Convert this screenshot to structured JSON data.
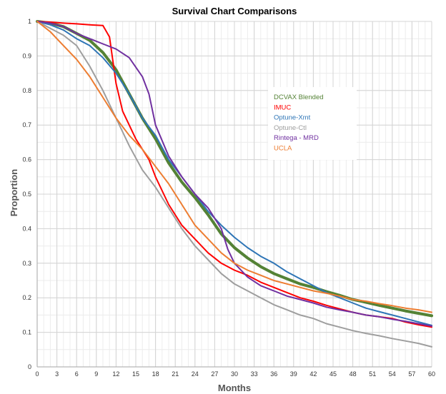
{
  "chart_data": {
    "type": "line",
    "title": "Survival Chart Comparisons",
    "xlabel": "Months",
    "ylabel": "Proportion",
    "xlim": [
      0,
      60
    ],
    "ylim": [
      0,
      1
    ],
    "x_ticks": [
      0,
      3,
      6,
      9,
      12,
      15,
      18,
      21,
      24,
      27,
      30,
      33,
      36,
      39,
      42,
      45,
      48,
      51,
      54,
      57,
      60
    ],
    "y_ticks": [
      0,
      0.1,
      0.2,
      0.3,
      0.4,
      0.5,
      0.6,
      0.7,
      0.8,
      0.9,
      1
    ],
    "y_tick_labels": [
      "0",
      "0.1",
      "0.2",
      "0.3",
      "0.4",
      "0.5",
      "0.6",
      "0.7",
      "0.8",
      "0.9",
      "1"
    ],
    "grid": true,
    "minor_grid_x": 1,
    "minor_grid_y": 0.05,
    "legend_position": "center-right",
    "series": [
      {
        "name": "DCVAX Blended",
        "color": "#548235",
        "width": 4,
        "points": [
          [
            0,
            1.0
          ],
          [
            2,
            0.995
          ],
          [
            4,
            0.985
          ],
          [
            6,
            0.965
          ],
          [
            8,
            0.945
          ],
          [
            10,
            0.91
          ],
          [
            12,
            0.86
          ],
          [
            14,
            0.79
          ],
          [
            16,
            0.72
          ],
          [
            18,
            0.66
          ],
          [
            20,
            0.59
          ],
          [
            22,
            0.535
          ],
          [
            24,
            0.49
          ],
          [
            26,
            0.44
          ],
          [
            28,
            0.385
          ],
          [
            30,
            0.345
          ],
          [
            32,
            0.315
          ],
          [
            34,
            0.29
          ],
          [
            36,
            0.27
          ],
          [
            38,
            0.255
          ],
          [
            40,
            0.24
          ],
          [
            42,
            0.23
          ],
          [
            44,
            0.218
          ],
          [
            46,
            0.207
          ],
          [
            48,
            0.195
          ],
          [
            50,
            0.187
          ],
          [
            52,
            0.178
          ],
          [
            54,
            0.17
          ],
          [
            56,
            0.162
          ],
          [
            58,
            0.155
          ],
          [
            60,
            0.148
          ]
        ]
      },
      {
        "name": "IMUC",
        "color": "#ff0000",
        "width": 2,
        "points": [
          [
            0,
            1.0
          ],
          [
            2,
            0.998
          ],
          [
            4,
            0.995
          ],
          [
            6,
            0.993
          ],
          [
            8,
            0.99
          ],
          [
            10,
            0.988
          ],
          [
            11,
            0.955
          ],
          [
            12,
            0.82
          ],
          [
            13,
            0.74
          ],
          [
            15,
            0.66
          ],
          [
            17,
            0.6
          ],
          [
            18,
            0.55
          ],
          [
            20,
            0.47
          ],
          [
            22,
            0.41
          ],
          [
            24,
            0.37
          ],
          [
            26,
            0.33
          ],
          [
            28,
            0.3
          ],
          [
            30,
            0.28
          ],
          [
            32,
            0.265
          ],
          [
            34,
            0.245
          ],
          [
            36,
            0.23
          ],
          [
            38,
            0.215
          ],
          [
            40,
            0.2
          ],
          [
            42,
            0.19
          ],
          [
            44,
            0.178
          ],
          [
            46,
            0.168
          ],
          [
            48,
            0.158
          ],
          [
            50,
            0.15
          ],
          [
            52,
            0.145
          ],
          [
            54,
            0.14
          ],
          [
            56,
            0.13
          ],
          [
            58,
            0.122
          ],
          [
            60,
            0.115
          ]
        ]
      },
      {
        "name": "Optune-Xmt",
        "color": "#2e75b6",
        "width": 2,
        "points": [
          [
            0,
            1.0
          ],
          [
            2,
            0.99
          ],
          [
            4,
            0.975
          ],
          [
            6,
            0.95
          ],
          [
            8,
            0.93
          ],
          [
            10,
            0.895
          ],
          [
            12,
            0.85
          ],
          [
            14,
            0.79
          ],
          [
            16,
            0.72
          ],
          [
            18,
            0.67
          ],
          [
            20,
            0.6
          ],
          [
            22,
            0.55
          ],
          [
            24,
            0.5
          ],
          [
            26,
            0.45
          ],
          [
            28,
            0.41
          ],
          [
            30,
            0.375
          ],
          [
            32,
            0.345
          ],
          [
            34,
            0.32
          ],
          [
            36,
            0.3
          ],
          [
            38,
            0.275
          ],
          [
            40,
            0.255
          ],
          [
            42,
            0.235
          ],
          [
            44,
            0.215
          ],
          [
            46,
            0.2
          ],
          [
            48,
            0.185
          ],
          [
            50,
            0.17
          ],
          [
            52,
            0.16
          ],
          [
            54,
            0.15
          ],
          [
            56,
            0.14
          ],
          [
            58,
            0.13
          ],
          [
            60,
            0.12
          ]
        ]
      },
      {
        "name": "Optune-Ctl",
        "color": "#9e9e9e",
        "width": 2,
        "points": [
          [
            0,
            1.0
          ],
          [
            2,
            0.98
          ],
          [
            4,
            0.96
          ],
          [
            6,
            0.93
          ],
          [
            8,
            0.87
          ],
          [
            10,
            0.8
          ],
          [
            12,
            0.72
          ],
          [
            14,
            0.64
          ],
          [
            16,
            0.57
          ],
          [
            18,
            0.52
          ],
          [
            20,
            0.46
          ],
          [
            22,
            0.4
          ],
          [
            24,
            0.35
          ],
          [
            26,
            0.31
          ],
          [
            28,
            0.27
          ],
          [
            30,
            0.24
          ],
          [
            32,
            0.22
          ],
          [
            34,
            0.2
          ],
          [
            36,
            0.18
          ],
          [
            38,
            0.165
          ],
          [
            40,
            0.15
          ],
          [
            42,
            0.14
          ],
          [
            44,
            0.125
          ],
          [
            46,
            0.115
          ],
          [
            48,
            0.105
          ],
          [
            50,
            0.097
          ],
          [
            52,
            0.09
          ],
          [
            54,
            0.082
          ],
          [
            56,
            0.075
          ],
          [
            58,
            0.068
          ],
          [
            60,
            0.058
          ]
        ]
      },
      {
        "name": "Rintega - MRD",
        "color": "#7030a0",
        "width": 2,
        "points": [
          [
            0,
            1.0
          ],
          [
            2,
            0.995
          ],
          [
            4,
            0.985
          ],
          [
            6,
            0.965
          ],
          [
            8,
            0.95
          ],
          [
            10,
            0.935
          ],
          [
            12,
            0.92
          ],
          [
            14,
            0.895
          ],
          [
            16,
            0.84
          ],
          [
            17,
            0.79
          ],
          [
            18,
            0.7
          ],
          [
            20,
            0.61
          ],
          [
            22,
            0.55
          ],
          [
            24,
            0.5
          ],
          [
            26,
            0.46
          ],
          [
            28,
            0.4
          ],
          [
            29,
            0.34
          ],
          [
            30,
            0.3
          ],
          [
            32,
            0.26
          ],
          [
            34,
            0.235
          ],
          [
            36,
            0.22
          ],
          [
            38,
            0.205
          ],
          [
            40,
            0.195
          ],
          [
            42,
            0.185
          ],
          [
            44,
            0.173
          ],
          [
            46,
            0.165
          ],
          [
            48,
            0.158
          ],
          [
            50,
            0.15
          ],
          [
            52,
            0.145
          ],
          [
            54,
            0.138
          ],
          [
            56,
            0.132
          ],
          [
            58,
            0.125
          ],
          [
            60,
            0.118
          ]
        ]
      },
      {
        "name": "UCLA",
        "color": "#ed7d31",
        "width": 2,
        "points": [
          [
            0,
            1.0
          ],
          [
            2,
            0.97
          ],
          [
            4,
            0.93
          ],
          [
            6,
            0.89
          ],
          [
            8,
            0.84
          ],
          [
            10,
            0.78
          ],
          [
            12,
            0.72
          ],
          [
            14,
            0.67
          ],
          [
            16,
            0.63
          ],
          [
            18,
            0.58
          ],
          [
            20,
            0.53
          ],
          [
            22,
            0.47
          ],
          [
            24,
            0.41
          ],
          [
            26,
            0.37
          ],
          [
            28,
            0.33
          ],
          [
            30,
            0.3
          ],
          [
            32,
            0.28
          ],
          [
            34,
            0.265
          ],
          [
            36,
            0.25
          ],
          [
            38,
            0.24
          ],
          [
            40,
            0.23
          ],
          [
            42,
            0.22
          ],
          [
            44,
            0.213
          ],
          [
            46,
            0.205
          ],
          [
            48,
            0.195
          ],
          [
            50,
            0.19
          ],
          [
            52,
            0.183
          ],
          [
            54,
            0.177
          ],
          [
            56,
            0.17
          ],
          [
            58,
            0.165
          ],
          [
            60,
            0.158
          ]
        ]
      }
    ]
  }
}
